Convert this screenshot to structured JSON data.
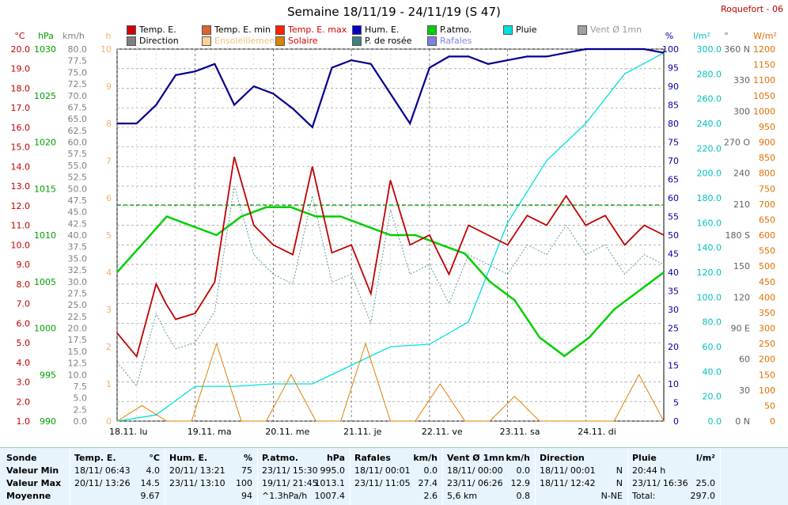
{
  "title": "Semaine 18/11/19 - 24/11/19 (S 47)",
  "station": "Roquefort - 06",
  "legend": [
    {
      "label": "Temp. E.",
      "color": "#d00000"
    },
    {
      "label": "Direction",
      "color": "#808080"
    },
    {
      "label": "Temp. E. min",
      "color": "#e06030"
    },
    {
      "label": "Ensoleillement",
      "color": "#ffd090"
    },
    {
      "label": "Temp. E. max",
      "color": "#ff2000"
    },
    {
      "label": "Solaire",
      "color": "#e08000"
    },
    {
      "label": "Hum. E.",
      "color": "#0000c0"
    },
    {
      "label": "P. de rosée",
      "color": "#408080"
    },
    {
      "label": "P.atmo.",
      "color": "#00d000"
    },
    {
      "label": "Rafales",
      "color": "#8080e0"
    },
    {
      "label": "Pluie",
      "color": "#00e0e0"
    },
    {
      "label": "Vent Ø 1mn",
      "color": "#a0a0a0"
    }
  ],
  "axes": {
    "temp_unit": "°C",
    "temp_ticks": [
      "20.0",
      "19.0",
      "18.0",
      "17.0",
      "16.0",
      "15.0",
      "14.0",
      "13.0",
      "12.0",
      "11.0",
      "10.0",
      "9.0",
      "8.0",
      "7.0",
      "6.0",
      "5.0",
      "4.0",
      "3.0",
      "2.0",
      "1.0"
    ],
    "hpa_unit": "hPa",
    "hpa_ticks": [
      "1030",
      "1025",
      "1020",
      "1015",
      "1010",
      "1005",
      "1000",
      "995",
      "990"
    ],
    "kmh_unit": "km/h",
    "kmh_ticks": [
      "80.0",
      "77.5",
      "75.0",
      "72.5",
      "70.0",
      "67.5",
      "65.0",
      "62.5",
      "60.0",
      "57.5",
      "55.0",
      "52.5",
      "50.0",
      "47.5",
      "45.0",
      "42.5",
      "40.0",
      "37.5",
      "35.0",
      "32.5",
      "30.0",
      "27.5",
      "25.0",
      "22.5",
      "20.0",
      "17.5",
      "15.0",
      "12.5",
      "10.0",
      "7.5",
      "5.0",
      "2.5",
      "0.0"
    ],
    "h_unit": "h",
    "h_ticks": [
      "10",
      "9",
      "8",
      "7",
      "6",
      "5",
      "4",
      "3",
      "2",
      "1",
      "0"
    ],
    "pct_unit": "%",
    "pct_ticks": [
      "100",
      "95",
      "90",
      "85",
      "80",
      "75",
      "70",
      "65",
      "60",
      "55",
      "50",
      "45",
      "40",
      "35",
      "30",
      "25",
      "20",
      "15",
      "10",
      "5",
      "0"
    ],
    "lm2_unit": "l/m²",
    "lm2_ticks": [
      "300.0",
      "280.0",
      "260.0",
      "240.0",
      "220.0",
      "200.0",
      "180.0",
      "160.0",
      "140.0",
      "120.0",
      "100.0",
      "80.0",
      "60.0",
      "40.0",
      "20.0",
      "0.0"
    ],
    "deg_unit": "°",
    "deg_ticks": [
      "360 N",
      "330",
      "300",
      "270 O",
      "240",
      "210",
      "180 S",
      "150",
      "120",
      "90 E",
      "60",
      "30",
      "0 N"
    ],
    "wm2_unit": "W/m²",
    "wm2_ticks": [
      "1200",
      "1150",
      "1100",
      "1050",
      "1000",
      "950",
      "900",
      "850",
      "800",
      "750",
      "700",
      "650",
      "600",
      "550",
      "500",
      "450",
      "400",
      "350",
      "300",
      "250",
      "200",
      "150",
      "100",
      "50",
      "0"
    ],
    "days": [
      "18.11. lu",
      "19.11. ma",
      "20.11. me",
      "21.11. je",
      "22.11. ve",
      "23.11. sa",
      "24.11. di"
    ]
  },
  "chart_data": {
    "type": "line",
    "title": "Semaine 18/11/19 - 24/11/19 (S 47)",
    "x_unit": "day of week (hours)",
    "series": [
      {
        "name": "Temp. E.",
        "unit": "°C",
        "x": [
          0,
          6,
          12,
          15,
          18,
          24,
          30,
          36,
          42,
          48,
          54,
          60,
          66,
          72,
          78,
          84,
          90,
          96,
          102,
          108,
          114,
          120,
          126,
          132,
          138,
          144,
          150,
          156,
          162,
          168
        ],
        "values": [
          5.5,
          4.3,
          8.0,
          7.0,
          6.2,
          6.5,
          8.1,
          14.5,
          11.0,
          10.0,
          9.5,
          14.0,
          9.6,
          10.0,
          7.5,
          13.3,
          10.0,
          10.5,
          8.5,
          11.0,
          10.5,
          10.0,
          11.5,
          11.0,
          12.5,
          11.0,
          11.5,
          10.0,
          11.0,
          10.5
        ]
      },
      {
        "name": "Hum. E.",
        "unit": "%",
        "x": [
          0,
          6,
          12,
          18,
          24,
          30,
          36,
          42,
          48,
          54,
          60,
          66,
          72,
          78,
          84,
          90,
          96,
          102,
          108,
          114,
          120,
          126,
          132,
          138,
          144,
          150,
          156,
          162,
          168
        ],
        "values": [
          80,
          80,
          85,
          93,
          94,
          96,
          85,
          90,
          88,
          84,
          79,
          95,
          97,
          96,
          88,
          80,
          95,
          98,
          98,
          96,
          97,
          98,
          98,
          99,
          100,
          100,
          100,
          100,
          99
        ]
      },
      {
        "name": "P.atmo.",
        "unit": "hPa",
        "values": [
          1006,
          1009,
          1012,
          1011,
          1010,
          1012,
          1013,
          1013,
          1012,
          1012,
          1011,
          1010,
          1010,
          1009,
          1008,
          1005,
          1003,
          999,
          997,
          999,
          1002,
          1004,
          1006
        ]
      },
      {
        "name": "Pluie",
        "unit": "l/m²",
        "values": [
          0,
          5,
          28,
          28,
          30,
          30,
          45,
          60,
          62,
          80,
          160,
          210,
          240,
          280,
          297
        ]
      },
      {
        "name": "Solaire",
        "unit": "W/m²",
        "values": [
          0,
          50,
          0,
          0,
          250,
          0,
          0,
          150,
          0,
          0,
          250,
          0,
          0,
          120,
          0,
          0,
          80,
          0,
          0,
          0,
          0,
          150,
          0
        ]
      }
    ],
    "ylim_temp": [
      1,
      20
    ],
    "ylim_hpa": [
      990,
      1030
    ],
    "ylim_pct": [
      0,
      100
    ]
  },
  "stats": {
    "sonde": {
      "header": "Sonde",
      "rows": [
        "Valeur Min",
        "Valeur Max",
        "Moyenne"
      ]
    },
    "temp": {
      "header": "Temp. E.",
      "unit": "°C",
      "rows": [
        [
          "18/11/ 06:43",
          "4.0"
        ],
        [
          "20/11/ 13:26",
          "14.5"
        ],
        [
          "",
          "9.67"
        ]
      ]
    },
    "hum": {
      "header": "Hum. E.",
      "unit": "%",
      "rows": [
        [
          "20/11/ 13:21",
          "75"
        ],
        [
          "23/11/ 13:10",
          "100"
        ],
        [
          "",
          "94"
        ]
      ]
    },
    "patmo": {
      "header": "P.atmo.",
      "unit": "hPa",
      "rows": [
        [
          "23/11/ 15:30",
          "995.0"
        ],
        [
          "19/11/ 21:45",
          "1013.1"
        ],
        [
          "^1.3hPa/h",
          "1007.4"
        ]
      ]
    },
    "rafales": {
      "header": "Rafales",
      "unit": "km/h",
      "rows": [
        [
          "18/11/ 00:01",
          "0.0"
        ],
        [
          "23/11/ 11:05",
          "27.4"
        ],
        [
          "",
          "2.6"
        ]
      ]
    },
    "vent": {
      "header": "Vent Ø 1mn",
      "unit": "km/h",
      "rows": [
        [
          "18/11/ 00:00",
          "0.0"
        ],
        [
          "23/11/ 06:26",
          "12.9"
        ],
        [
          "5,6 km",
          "0.8"
        ]
      ]
    },
    "direction": {
      "header": "Direction",
      "unit": "",
      "rows": [
        [
          "18/11/ 00:01",
          "N"
        ],
        [
          "18/11/ 12:42",
          "N"
        ],
        [
          "",
          "N-NE"
        ]
      ]
    },
    "pluie": {
      "header": "Pluie",
      "unit": "l/m²",
      "rows": [
        [
          "20:44 h",
          ""
        ],
        [
          "23/11/ 16:36",
          "25.0"
        ],
        [
          "Total:",
          "297.0"
        ]
      ]
    }
  }
}
